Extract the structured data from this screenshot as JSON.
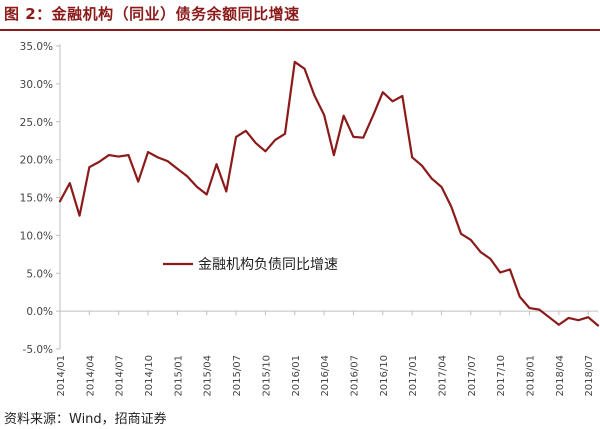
{
  "figure": {
    "title": "图 2：金融机构（同业）债务余额同比增速",
    "source": "资料来源：Wind，招商证券"
  },
  "colors": {
    "accent": "#8B1A1A",
    "line": "#8B1A1A",
    "axis": "#bfbfbf"
  },
  "chart_data": {
    "type": "line",
    "ylim": [
      -5,
      35
    ],
    "yticks": [
      35,
      30,
      25,
      20,
      15,
      10,
      5,
      0,
      -5
    ],
    "ytick_labels": [
      "35.0%",
      "30.0%",
      "25.0%",
      "20.0%",
      "15.0%",
      "10.0%",
      "5.0%",
      "0.0%",
      "-5.0%"
    ],
    "xtick_labels": [
      "2014/01",
      "2014/04",
      "2014/07",
      "2014/10",
      "2015/01",
      "2015/04",
      "2015/07",
      "2015/10",
      "2016/01",
      "2016/04",
      "2016/07",
      "2016/10",
      "2017/01",
      "2017/04",
      "2017/07",
      "2017/10",
      "2018/01",
      "2018/04",
      "2018/07"
    ],
    "legend": "top-center",
    "grid": false,
    "series": [
      {
        "name": "金融机构负债同比增速",
        "x": [
          "2014/01",
          "2014/02",
          "2014/03",
          "2014/04",
          "2014/05",
          "2014/06",
          "2014/07",
          "2014/08",
          "2014/09",
          "2014/10",
          "2014/11",
          "2014/12",
          "2015/01",
          "2015/02",
          "2015/03",
          "2015/04",
          "2015/05",
          "2015/06",
          "2015/07",
          "2015/08",
          "2015/09",
          "2015/10",
          "2015/11",
          "2015/12",
          "2016/01",
          "2016/02",
          "2016/03",
          "2016/04",
          "2016/05",
          "2016/06",
          "2016/07",
          "2016/08",
          "2016/09",
          "2016/10",
          "2016/11",
          "2016/12",
          "2017/01",
          "2017/02",
          "2017/03",
          "2017/04",
          "2017/05",
          "2017/06",
          "2017/07",
          "2017/08",
          "2017/09",
          "2017/10",
          "2017/11",
          "2017/12",
          "2018/01",
          "2018/02",
          "2018/03",
          "2018/04",
          "2018/05",
          "2018/06",
          "2018/07",
          "2018/08"
        ],
        "values": [
          14.5,
          16.9,
          12.6,
          19.0,
          19.7,
          20.6,
          20.4,
          20.6,
          17.1,
          21.0,
          20.3,
          19.8,
          18.8,
          17.8,
          16.4,
          15.4,
          19.4,
          15.8,
          23.0,
          23.8,
          22.2,
          21.1,
          22.6,
          23.4,
          32.9,
          32.0,
          28.5,
          25.9,
          20.6,
          25.8,
          23.0,
          22.9,
          25.8,
          28.9,
          27.7,
          28.4,
          20.3,
          19.2,
          17.5,
          16.4,
          13.8,
          10.2,
          9.4,
          7.8,
          6.9,
          5.1,
          5.5,
          1.9,
          0.4,
          0.2,
          -0.8,
          -1.8,
          -0.9,
          -1.2,
          -0.8,
          -1.9
        ]
      }
    ]
  }
}
